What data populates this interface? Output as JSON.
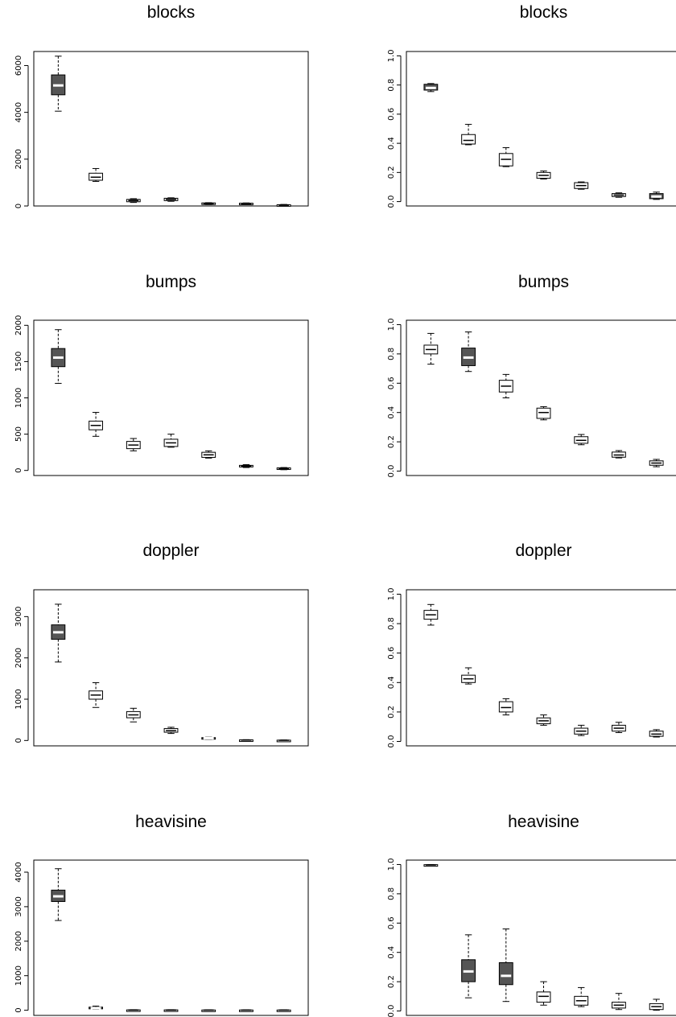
{
  "chart_data": [
    {
      "type": "box",
      "title": "blocks",
      "ylim": [
        0,
        6600
      ],
      "yticks": [
        0,
        2000,
        4000,
        6000
      ],
      "ytick_labels": [
        "0",
        "2000",
        "4000",
        "6000"
      ],
      "boxes": [
        {
          "q1": 4750,
          "median": 5150,
          "q3": 5600,
          "whislo": 4050,
          "whishi": 6400,
          "fill": "#555555"
        },
        {
          "q1": 1100,
          "median": 1230,
          "q3": 1400,
          "whislo": 1050,
          "whishi": 1600,
          "fill": "#ffffff"
        },
        {
          "q1": 180,
          "median": 230,
          "q3": 280,
          "whislo": 150,
          "whishi": 310,
          "fill": "#ffffff"
        },
        {
          "q1": 230,
          "median": 280,
          "q3": 330,
          "whislo": 200,
          "whishi": 350,
          "fill": "#ffffff"
        },
        {
          "q1": 70,
          "median": 100,
          "q3": 130,
          "whislo": 60,
          "whishi": 140,
          "fill": "#ffffff"
        },
        {
          "q1": 80,
          "median": 100,
          "q3": 120,
          "whislo": 70,
          "whishi": 130,
          "fill": "#ffffff"
        },
        {
          "q1": 10,
          "median": 30,
          "q3": 55,
          "whislo": 0,
          "whishi": 65,
          "fill": "#ffffff"
        }
      ]
    },
    {
      "type": "box",
      "title": "blocks",
      "ylim": [
        -0.03,
        1.03
      ],
      "yticks": [
        0,
        0.2,
        0.4,
        0.6,
        0.8,
        1.0
      ],
      "ytick_labels": [
        "0.0",
        "0.2",
        "0.4",
        "0.6",
        "0.8",
        "1.0"
      ],
      "boxes": [
        {
          "q1": 0.765,
          "median": 0.78,
          "q3": 0.805,
          "whislo": 0.755,
          "whishi": 0.81,
          "fill": "#555555"
        },
        {
          "q1": 0.395,
          "median": 0.42,
          "q3": 0.46,
          "whislo": 0.39,
          "whishi": 0.53,
          "fill": "#ffffff"
        },
        {
          "q1": 0.245,
          "median": 0.29,
          "q3": 0.33,
          "whislo": 0.24,
          "whishi": 0.37,
          "fill": "#ffffff"
        },
        {
          "q1": 0.16,
          "median": 0.18,
          "q3": 0.2,
          "whislo": 0.155,
          "whishi": 0.21,
          "fill": "#ffffff"
        },
        {
          "q1": 0.09,
          "median": 0.11,
          "q3": 0.13,
          "whislo": 0.085,
          "whishi": 0.135,
          "fill": "#ffffff"
        },
        {
          "q1": 0.035,
          "median": 0.045,
          "q3": 0.055,
          "whislo": 0.03,
          "whishi": 0.06,
          "fill": "#ffffff"
        },
        {
          "q1": 0.02,
          "median": 0.035,
          "q3": 0.055,
          "whislo": 0.015,
          "whishi": 0.065,
          "fill": "#555555"
        }
      ]
    },
    {
      "type": "box",
      "title": "bumps",
      "ylim": [
        -70,
        2070
      ],
      "yticks": [
        0,
        500,
        1000,
        1500,
        2000
      ],
      "ytick_labels": [
        "0",
        "500",
        "1000",
        "1500",
        "2000"
      ],
      "boxes": [
        {
          "q1": 1430,
          "median": 1555,
          "q3": 1680,
          "whislo": 1200,
          "whishi": 1940,
          "fill": "#555555"
        },
        {
          "q1": 560,
          "median": 620,
          "q3": 680,
          "whislo": 470,
          "whishi": 800,
          "fill": "#ffffff"
        },
        {
          "q1": 300,
          "median": 350,
          "q3": 400,
          "whislo": 270,
          "whishi": 440,
          "fill": "#ffffff"
        },
        {
          "q1": 330,
          "median": 380,
          "q3": 430,
          "whislo": 320,
          "whishi": 500,
          "fill": "#ffffff"
        },
        {
          "q1": 180,
          "median": 215,
          "q3": 250,
          "whislo": 170,
          "whishi": 270,
          "fill": "#ffffff"
        },
        {
          "q1": 50,
          "median": 60,
          "q3": 70,
          "whislo": 40,
          "whishi": 80,
          "fill": "#ffffff"
        },
        {
          "q1": 15,
          "median": 25,
          "q3": 35,
          "whislo": 10,
          "whishi": 40,
          "fill": "#ffffff"
        }
      ]
    },
    {
      "type": "box",
      "title": "bumps",
      "ylim": [
        -0.03,
        1.03
      ],
      "yticks": [
        0,
        0.2,
        0.4,
        0.6,
        0.8,
        1.0
      ],
      "ytick_labels": [
        "0.0",
        "0.2",
        "0.4",
        "0.6",
        "0.8",
        "1.0"
      ],
      "boxes": [
        {
          "q1": 0.8,
          "median": 0.83,
          "q3": 0.86,
          "whislo": 0.73,
          "whishi": 0.94,
          "fill": "#ffffff"
        },
        {
          "q1": 0.72,
          "median": 0.775,
          "q3": 0.84,
          "whislo": 0.68,
          "whishi": 0.95,
          "fill": "#555555"
        },
        {
          "q1": 0.54,
          "median": 0.58,
          "q3": 0.62,
          "whislo": 0.5,
          "whishi": 0.66,
          "fill": "#ffffff"
        },
        {
          "q1": 0.36,
          "median": 0.4,
          "q3": 0.43,
          "whislo": 0.35,
          "whishi": 0.44,
          "fill": "#ffffff"
        },
        {
          "q1": 0.19,
          "median": 0.21,
          "q3": 0.235,
          "whislo": 0.18,
          "whishi": 0.25,
          "fill": "#ffffff"
        },
        {
          "q1": 0.095,
          "median": 0.11,
          "q3": 0.13,
          "whislo": 0.09,
          "whishi": 0.14,
          "fill": "#ffffff"
        },
        {
          "q1": 0.04,
          "median": 0.055,
          "q3": 0.07,
          "whislo": 0.03,
          "whishi": 0.08,
          "fill": "#ffffff"
        }
      ]
    },
    {
      "type": "box",
      "title": "doppler",
      "ylim": [
        -130,
        3650
      ],
      "yticks": [
        0,
        1000,
        2000,
        3000
      ],
      "ytick_labels": [
        "0",
        "1000",
        "2000",
        "3000"
      ],
      "boxes": [
        {
          "q1": 2450,
          "median": 2620,
          "q3": 2800,
          "whislo": 1900,
          "whishi": 3300,
          "fill": "#555555"
        },
        {
          "q1": 1000,
          "median": 1100,
          "q3": 1200,
          "whislo": 800,
          "whishi": 1400,
          "fill": "#ffffff"
        },
        {
          "q1": 550,
          "median": 620,
          "q3": 700,
          "whislo": 450,
          "whishi": 780,
          "fill": "#ffffff"
        },
        {
          "q1": 200,
          "median": 240,
          "q3": 290,
          "whislo": 170,
          "whishi": 320,
          "fill": "#ffffff"
        },
        {
          "q1": 40,
          "median": 55,
          "q3": 70,
          "whislo": 30,
          "whishi": 80,
          "fill": "#555555"
        },
        {
          "q1": 5,
          "median": 10,
          "q3": 15,
          "whislo": 0,
          "whishi": 20,
          "fill": "#ffffff"
        },
        {
          "q1": 0,
          "median": 5,
          "q3": 8,
          "whislo": 0,
          "whishi": 12,
          "fill": "#ffffff"
        }
      ]
    },
    {
      "type": "box",
      "title": "doppler",
      "ylim": [
        -0.03,
        1.03
      ],
      "yticks": [
        0,
        0.2,
        0.4,
        0.6,
        0.8,
        1.0
      ],
      "ytick_labels": [
        "0.0",
        "0.2",
        "0.4",
        "0.6",
        "0.8",
        "1.0"
      ],
      "boxes": [
        {
          "q1": 0.83,
          "median": 0.86,
          "q3": 0.89,
          "whislo": 0.79,
          "whishi": 0.93,
          "fill": "#ffffff"
        },
        {
          "q1": 0.4,
          "median": 0.425,
          "q3": 0.45,
          "whislo": 0.39,
          "whishi": 0.5,
          "fill": "#ffffff"
        },
        {
          "q1": 0.2,
          "median": 0.23,
          "q3": 0.27,
          "whislo": 0.18,
          "whishi": 0.29,
          "fill": "#ffffff"
        },
        {
          "q1": 0.12,
          "median": 0.14,
          "q3": 0.16,
          "whislo": 0.11,
          "whishi": 0.18,
          "fill": "#ffffff"
        },
        {
          "q1": 0.05,
          "median": 0.07,
          "q3": 0.09,
          "whislo": 0.04,
          "whishi": 0.11,
          "fill": "#ffffff"
        },
        {
          "q1": 0.07,
          "median": 0.09,
          "q3": 0.11,
          "whislo": 0.06,
          "whishi": 0.13,
          "fill": "#ffffff"
        },
        {
          "q1": 0.035,
          "median": 0.05,
          "q3": 0.07,
          "whislo": 0.03,
          "whishi": 0.08,
          "fill": "#ffffff"
        }
      ]
    },
    {
      "type": "box",
      "title": "heavisine",
      "ylim": [
        -150,
        4350
      ],
      "yticks": [
        0,
        1000,
        2000,
        3000,
        4000
      ],
      "ytick_labels": [
        "0",
        "1000",
        "2000",
        "3000",
        "4000"
      ],
      "boxes": [
        {
          "q1": 3150,
          "median": 3300,
          "q3": 3480,
          "whislo": 2600,
          "whishi": 4100,
          "fill": "#555555"
        },
        {
          "q1": 40,
          "median": 60,
          "q3": 90,
          "whislo": 30,
          "whishi": 120,
          "fill": "#555555"
        },
        {
          "q1": 0,
          "median": 5,
          "q3": 10,
          "whislo": 0,
          "whishi": 15,
          "fill": "#ffffff"
        },
        {
          "q1": 0,
          "median": 5,
          "q3": 10,
          "whislo": 0,
          "whishi": 15,
          "fill": "#ffffff"
        },
        {
          "q1": 0,
          "median": 3,
          "q3": 6,
          "whislo": 0,
          "whishi": 10,
          "fill": "#ffffff"
        },
        {
          "q1": 0,
          "median": 3,
          "q3": 6,
          "whislo": 0,
          "whishi": 10,
          "fill": "#ffffff"
        },
        {
          "q1": 0,
          "median": 3,
          "q3": 6,
          "whislo": 0,
          "whishi": 10,
          "fill": "#ffffff"
        }
      ]
    },
    {
      "type": "box",
      "title": "heavisine",
      "ylim": [
        -0.03,
        1.03
      ],
      "yticks": [
        0,
        0.2,
        0.4,
        0.6,
        0.8,
        1.0
      ],
      "ytick_labels": [
        "0.0",
        "0.2",
        "0.4",
        "0.6",
        "0.8",
        "1.0"
      ],
      "boxes": [
        {
          "q1": 0.995,
          "median": 0.997,
          "q3": 0.999,
          "whislo": 0.99,
          "whishi": 1.0,
          "fill": "#ffffff"
        },
        {
          "q1": 0.2,
          "median": 0.27,
          "q3": 0.35,
          "whislo": 0.09,
          "whishi": 0.52,
          "fill": "#555555"
        },
        {
          "q1": 0.18,
          "median": 0.24,
          "q3": 0.33,
          "whislo": 0.065,
          "whishi": 0.56,
          "fill": "#555555"
        },
        {
          "q1": 0.06,
          "median": 0.1,
          "q3": 0.13,
          "whislo": 0.04,
          "whishi": 0.2,
          "fill": "#ffffff"
        },
        {
          "q1": 0.04,
          "median": 0.07,
          "q3": 0.1,
          "whislo": 0.03,
          "whishi": 0.16,
          "fill": "#ffffff"
        },
        {
          "q1": 0.02,
          "median": 0.04,
          "q3": 0.06,
          "whislo": 0.01,
          "whishi": 0.12,
          "fill": "#ffffff"
        },
        {
          "q1": 0.01,
          "median": 0.03,
          "q3": 0.05,
          "whislo": 0.005,
          "whishi": 0.08,
          "fill": "#ffffff"
        }
      ]
    }
  ]
}
